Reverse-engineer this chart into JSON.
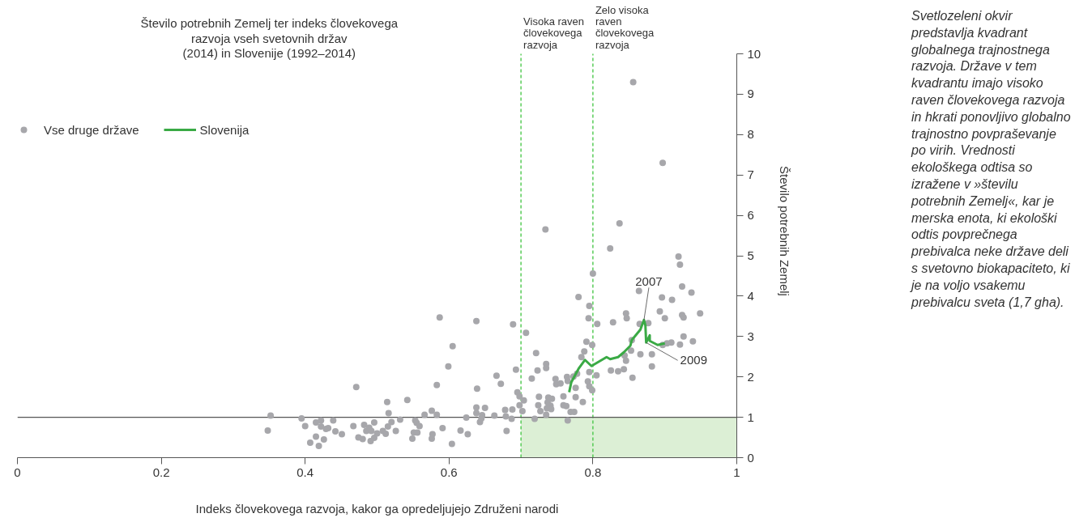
{
  "chart_data": {
    "type": "scatter",
    "title": "Število potrebnih Zemelj ter indeks človekovega razvoja vseh svetovnih držav (2014) in Slovenije (1992–2014)",
    "xlabel": "Indeks človekovega razvoja, kakor ga opredeljujejo Združeni narodi",
    "ylabel": "Število potrebnih Zemelj",
    "xlim": [
      0,
      1
    ],
    "ylim": [
      0,
      10
    ],
    "xticks": [
      0,
      0.2,
      0.4,
      0.6,
      0.8,
      1
    ],
    "yticks": [
      0,
      1,
      2,
      3,
      4,
      5,
      6,
      7,
      8,
      9,
      10
    ],
    "grid": false,
    "legend": "top left",
    "line_style": "solid",
    "series": [
      {
        "name": "Vse druge države",
        "color": "#a7a7ab",
        "marker": "circle",
        "x": [
          0.352,
          0.348,
          0.395,
          0.4,
          0.415,
          0.422,
          0.422,
          0.429,
          0.432,
          0.439,
          0.442,
          0.451,
          0.415,
          0.407,
          0.419,
          0.426,
          0.471,
          0.467,
          0.482,
          0.485,
          0.489,
          0.492,
          0.496,
          0.474,
          0.48,
          0.491,
          0.496,
          0.5,
          0.508,
          0.512,
          0.515,
          0.52,
          0.526,
          0.514,
          0.516,
          0.532,
          0.542,
          0.553,
          0.555,
          0.559,
          0.551,
          0.556,
          0.549,
          0.566,
          0.576,
          0.583,
          0.583,
          0.577,
          0.576,
          0.591,
          0.604,
          0.587,
          0.599,
          0.605,
          0.616,
          0.626,
          0.624,
          0.638,
          0.639,
          0.638,
          0.638,
          0.65,
          0.646,
          0.645,
          0.643,
          0.663,
          0.666,
          0.672,
          0.678,
          0.679,
          0.68,
          0.687,
          0.688,
          0.689,
          0.693,
          0.695,
          0.698,
          0.698,
          0.702,
          0.704,
          0.707,
          0.734,
          0.824,
          0.8,
          0.78,
          0.795,
          0.794,
          0.806,
          0.828,
          0.791,
          0.799,
          0.788,
          0.784,
          0.721,
          0.735,
          0.735,
          0.723,
          0.715,
          0.778,
          0.773,
          0.764,
          0.795,
          0.805,
          0.825,
          0.748,
          0.749,
          0.755,
          0.765,
          0.793,
          0.795,
          0.799,
          0.776,
          0.725,
          0.738,
          0.743,
          0.759,
          0.724,
          0.737,
          0.741,
          0.759,
          0.763,
          0.776,
          0.786,
          0.727,
          0.736,
          0.742,
          0.735,
          0.719,
          0.769,
          0.774,
          0.765,
          0.864,
          0.896,
          0.91,
          0.919,
          0.921,
          0.924,
          0.937,
          0.949,
          0.846,
          0.847,
          0.893,
          0.9,
          0.924,
          0.926,
          0.865,
          0.877,
          0.926,
          0.921,
          0.939,
          0.909,
          0.903,
          0.897,
          0.866,
          0.882,
          0.882,
          0.853,
          0.854,
          0.844,
          0.846,
          0.843,
          0.835,
          0.855,
          0.856,
          0.897,
          0.837
        ],
        "values": [
          1.04,
          0.67,
          0.97,
          0.78,
          0.87,
          0.92,
          0.77,
          0.71,
          0.73,
          0.92,
          0.65,
          0.58,
          0.52,
          0.37,
          0.29,
          0.45,
          1.75,
          0.78,
          0.81,
          0.66,
          0.74,
          0.66,
          0.87,
          0.5,
          0.46,
          0.41,
          0.49,
          0.6,
          0.66,
          0.59,
          0.77,
          0.88,
          0.66,
          1.38,
          1.1,
          0.94,
          1.43,
          0.92,
          0.86,
          0.78,
          0.62,
          0.62,
          0.47,
          1.06,
          1.16,
          1.06,
          1.8,
          0.58,
          0.47,
          0.73,
          0.34,
          3.47,
          2.26,
          2.76,
          0.67,
          0.58,
          0.99,
          3.38,
          1.71,
          1.24,
          1.1,
          1.23,
          1.05,
          0.97,
          0.88,
          1.04,
          2.03,
          1.83,
          1.18,
          1.02,
          0.66,
          0.96,
          1.19,
          3.3,
          2.18,
          1.62,
          1.52,
          1.3,
          1.15,
          1.42,
          3.09,
          5.65,
          5.18,
          4.56,
          3.98,
          3.76,
          3.45,
          3.31,
          3.35,
          2.87,
          2.79,
          2.63,
          2.49,
          2.59,
          2.32,
          2.22,
          2.16,
          1.96,
          2.08,
          2.01,
          2.0,
          2.12,
          2.04,
          2.16,
          1.95,
          1.82,
          1.84,
          1.9,
          1.89,
          1.77,
          1.67,
          1.73,
          1.51,
          1.49,
          1.46,
          1.52,
          1.3,
          1.37,
          1.29,
          1.3,
          1.28,
          1.5,
          1.38,
          1.15,
          1.22,
          1.2,
          1.06,
          0.96,
          1.13,
          1.13,
          0.92,
          4.13,
          3.97,
          3.91,
          4.98,
          4.78,
          4.24,
          4.09,
          3.57,
          3.57,
          3.45,
          3.62,
          3.45,
          3.53,
          3.47,
          3.31,
          3.33,
          3.0,
          2.8,
          2.88,
          2.85,
          2.83,
          2.79,
          2.56,
          2.56,
          2.26,
          2.65,
          2.91,
          2.53,
          2.4,
          2.19,
          2.14,
          1.98,
          9.3,
          7.3,
          5.8
        ]
      },
      {
        "type": "line",
        "name": "Slovenija",
        "color": "#3aaa45",
        "x": [
          0.767,
          0.77,
          0.78,
          0.789,
          0.798,
          0.819,
          0.824,
          0.835,
          0.843,
          0.852,
          0.854,
          0.866,
          0.871,
          0.873,
          0.874,
          0.879,
          0.879,
          0.89,
          0.9
        ],
        "values": [
          1.62,
          1.87,
          2.2,
          2.42,
          2.27,
          2.49,
          2.44,
          2.49,
          2.61,
          2.77,
          2.91,
          3.17,
          3.41,
          3.27,
          2.85,
          3.03,
          2.89,
          2.79,
          2.83
        ]
      }
    ],
    "ref_lines": [
      {
        "axis": "x",
        "value": 0.7,
        "label": "Visoka raven človekovega razvoja",
        "color": "#3ec43e",
        "line_style": "dashed"
      },
      {
        "axis": "x",
        "value": 0.8,
        "label": "Zelo visoka raven človekovega razvoja",
        "color": "#3ec43e",
        "line_style": "dashed"
      },
      {
        "axis": "y",
        "value": 1,
        "color": "#555555",
        "line_style": "solid"
      }
    ],
    "bands": [
      {
        "axis": "x",
        "from": 0.7,
        "to": 1,
        "color": "#dcefd5"
      }
    ],
    "annotations": [
      {
        "text": "2007",
        "x": 0.871,
        "y": 3.41
      },
      {
        "text": "2009",
        "x": 0.874,
        "y": 2.85
      },
      "Svetlozeleni okvir predstavlja kvadrant globalnega trajnostnega razvoja. Države v tem kvadrantu imajo visoko raven človekovega razvoja in hkrati ponovljivo globalno trajnostno povpraševanje po virih. Vrednosti ekološkega odtisa so izražene v »številu potrebnih Zemelj«, kar je merska enota, ki ekološki odtis povprečnega prebivalca neke države deli s svetovno biokapaciteto, ki je na voljo vsakemu prebivalcu sveta (1,7 gha)."
    ]
  }
}
